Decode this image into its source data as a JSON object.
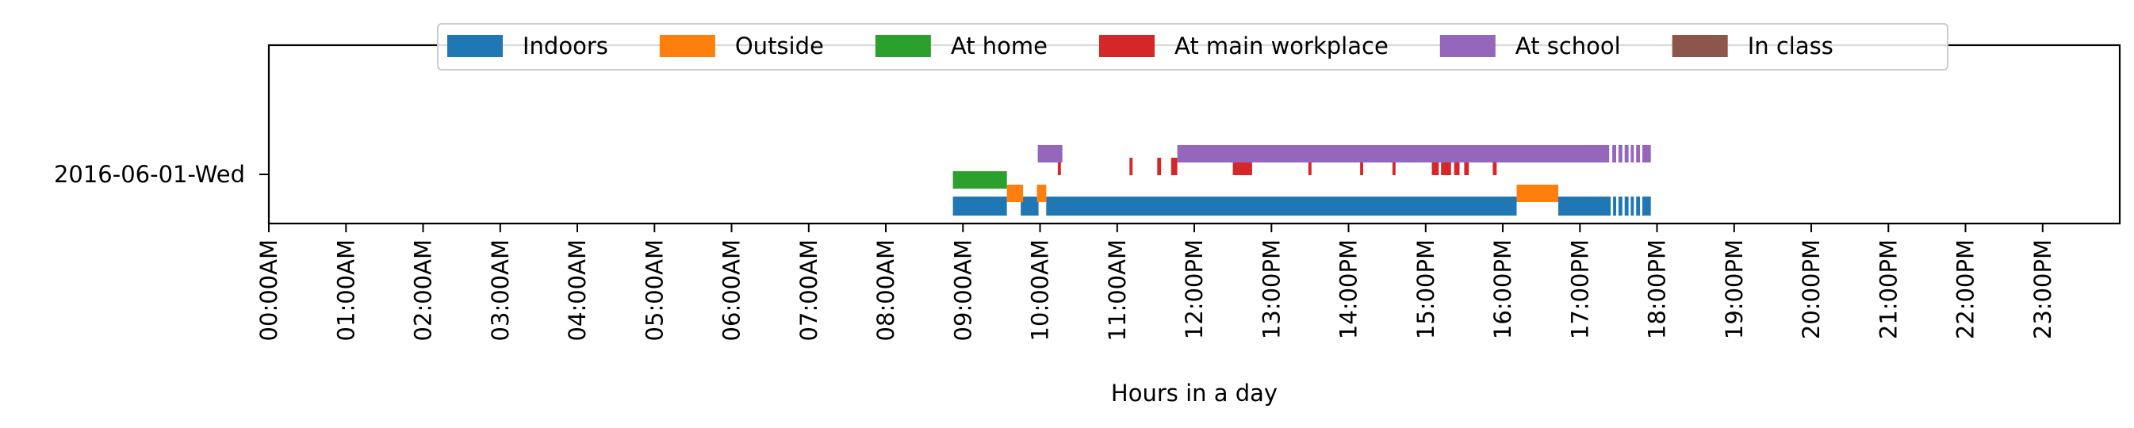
{
  "chart_data": {
    "type": "timeline",
    "xlabel": "Hours in a day",
    "xlim": [
      0,
      24
    ],
    "x_ticks": [
      {
        "hour": 0,
        "label": "00:00AM"
      },
      {
        "hour": 1,
        "label": "01:00AM"
      },
      {
        "hour": 2,
        "label": "02:00AM"
      },
      {
        "hour": 3,
        "label": "03:00AM"
      },
      {
        "hour": 4,
        "label": "04:00AM"
      },
      {
        "hour": 5,
        "label": "05:00AM"
      },
      {
        "hour": 6,
        "label": "06:00AM"
      },
      {
        "hour": 7,
        "label": "07:00AM"
      },
      {
        "hour": 8,
        "label": "08:00AM"
      },
      {
        "hour": 9,
        "label": "09:00AM"
      },
      {
        "hour": 10,
        "label": "10:00AM"
      },
      {
        "hour": 11,
        "label": "11:00AM"
      },
      {
        "hour": 12,
        "label": "12:00PM"
      },
      {
        "hour": 13,
        "label": "13:00PM"
      },
      {
        "hour": 14,
        "label": "14:00PM"
      },
      {
        "hour": 15,
        "label": "15:00PM"
      },
      {
        "hour": 16,
        "label": "16:00PM"
      },
      {
        "hour": 17,
        "label": "17:00PM"
      },
      {
        "hour": 18,
        "label": "18:00PM"
      },
      {
        "hour": 19,
        "label": "19:00PM"
      },
      {
        "hour": 20,
        "label": "20:00PM"
      },
      {
        "hour": 21,
        "label": "21:00PM"
      },
      {
        "hour": 22,
        "label": "22:00PM"
      },
      {
        "hour": 23,
        "label": "23:00PM"
      }
    ],
    "day_label": "2016-06-01-Wed",
    "legend_position": "top-center",
    "series": [
      {
        "name": "Indoors",
        "color": "#1f77b4",
        "intervals": [
          [
            8.87,
            9.57
          ],
          [
            9.75,
            9.98
          ],
          [
            10.08,
            16.18
          ],
          [
            16.72,
            17.4
          ],
          [
            17.43,
            17.47
          ],
          [
            17.5,
            17.55
          ],
          [
            17.58,
            17.63
          ],
          [
            17.66,
            17.7
          ],
          [
            17.73,
            17.78
          ],
          [
            17.81,
            17.92
          ]
        ]
      },
      {
        "name": "Outside",
        "color": "#ff7f0e",
        "intervals": [
          [
            9.57,
            9.78
          ],
          [
            9.96,
            10.08
          ],
          [
            16.18,
            16.72
          ]
        ]
      },
      {
        "name": "At home",
        "color": "#2ca02c",
        "intervals": [
          [
            8.87,
            9.57
          ]
        ]
      },
      {
        "name": "At main workplace",
        "color": "#d62728",
        "intervals": [
          [
            10.23,
            10.27
          ],
          [
            11.16,
            11.2
          ],
          [
            11.52,
            11.57
          ],
          [
            11.7,
            11.78
          ],
          [
            12.5,
            12.75
          ],
          [
            13.48,
            13.52
          ],
          [
            14.15,
            14.19
          ],
          [
            14.57,
            14.61
          ],
          [
            15.08,
            15.17
          ],
          [
            15.2,
            15.33
          ],
          [
            15.37,
            15.44
          ],
          [
            15.5,
            15.56
          ],
          [
            15.87,
            15.92
          ]
        ]
      },
      {
        "name": "At school",
        "color": "#9467bd",
        "intervals": [
          [
            9.97,
            10.29
          ],
          [
            11.78,
            17.38
          ],
          [
            17.42,
            17.47
          ],
          [
            17.5,
            17.55
          ],
          [
            17.58,
            17.63
          ],
          [
            17.66,
            17.7
          ],
          [
            17.73,
            17.78
          ],
          [
            17.81,
            17.92
          ]
        ]
      },
      {
        "name": "In class",
        "color": "#8c564b",
        "intervals": []
      }
    ]
  }
}
